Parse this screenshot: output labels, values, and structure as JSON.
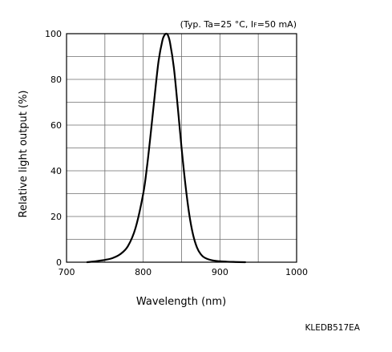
{
  "chart_data": {
    "type": "line",
    "annotation": {
      "prefix": "(Typ. Ta=25 °C, I",
      "subscript": "F",
      "suffix": "=50 mA)"
    },
    "xlabel": "Wavelength (nm)",
    "ylabel": "Relative light output (%)",
    "xlim": [
      700,
      1000
    ],
    "ylim": [
      0,
      100
    ],
    "x_ticks": [
      700,
      800,
      900,
      1000
    ],
    "y_ticks": [
      0,
      20,
      40,
      60,
      80,
      100
    ],
    "x_minor_step": 50,
    "y_minor_step": 10,
    "grid": true,
    "part_code": "KLEDB517EA",
    "series": [
      {
        "color": "#000000",
        "x": [
          727,
          740,
          750,
          760,
          770,
          780,
          790,
          800,
          805,
          810,
          815,
          820,
          825,
          828,
          830,
          832,
          835,
          840,
          845,
          850,
          855,
          860,
          865,
          870,
          875,
          880,
          890,
          900,
          910,
          920,
          933
        ],
        "y": [
          0,
          0.5,
          1,
          1.8,
          3.5,
          7,
          15,
          30,
          42,
          57,
          73,
          88,
          97,
          99.5,
          100,
          99.5,
          96,
          85,
          68,
          50,
          34,
          21,
          12,
          6.5,
          3.5,
          2,
          0.8,
          0.4,
          0.2,
          0.1,
          0
        ]
      }
    ]
  }
}
